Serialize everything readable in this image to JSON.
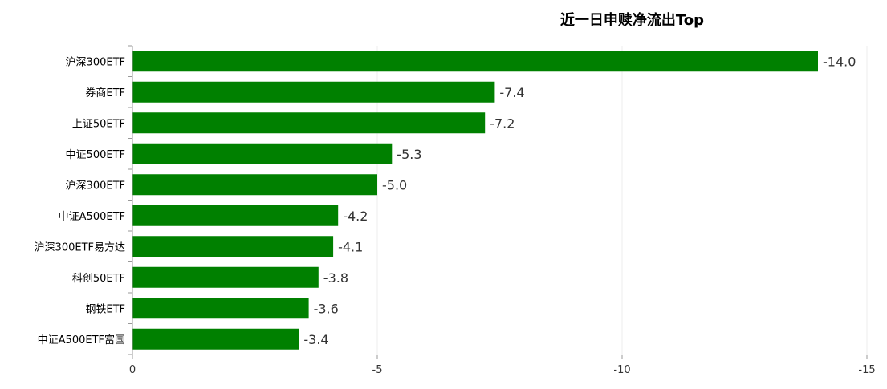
{
  "chart_data": {
    "type": "bar",
    "orientation": "horizontal",
    "title": "近一日申赎净流出Top",
    "categories": [
      "沪深300ETF",
      "券商ETF",
      "上证50ETF",
      "中证500ETF",
      "沪深300ETF",
      "中证A500ETF",
      "沪深300ETF易方达",
      "科创50ETF",
      "钢铁ETF",
      "中证A500ETF富国"
    ],
    "values": [
      -14.0,
      -7.4,
      -7.2,
      -5.3,
      -5.0,
      -4.2,
      -4.1,
      -3.8,
      -3.6,
      -3.4
    ],
    "value_labels": [
      "-14.0",
      "-7.4",
      "-7.2",
      "-5.3",
      "-5.0",
      "-4.2",
      "-4.1",
      "-3.8",
      "-3.6",
      "-3.4"
    ],
    "xlim": [
      0,
      -15
    ],
    "xticks": [
      0,
      -5,
      -10,
      -15
    ],
    "xtick_labels": [
      "0",
      "-5",
      "-10",
      "-15"
    ],
    "xlabel": "",
    "ylabel": "",
    "grid": true,
    "legend": "none",
    "colors": {
      "bar": "#008000",
      "grid": "#eeeeee",
      "axis": "#999999",
      "text": "#333333"
    }
  }
}
